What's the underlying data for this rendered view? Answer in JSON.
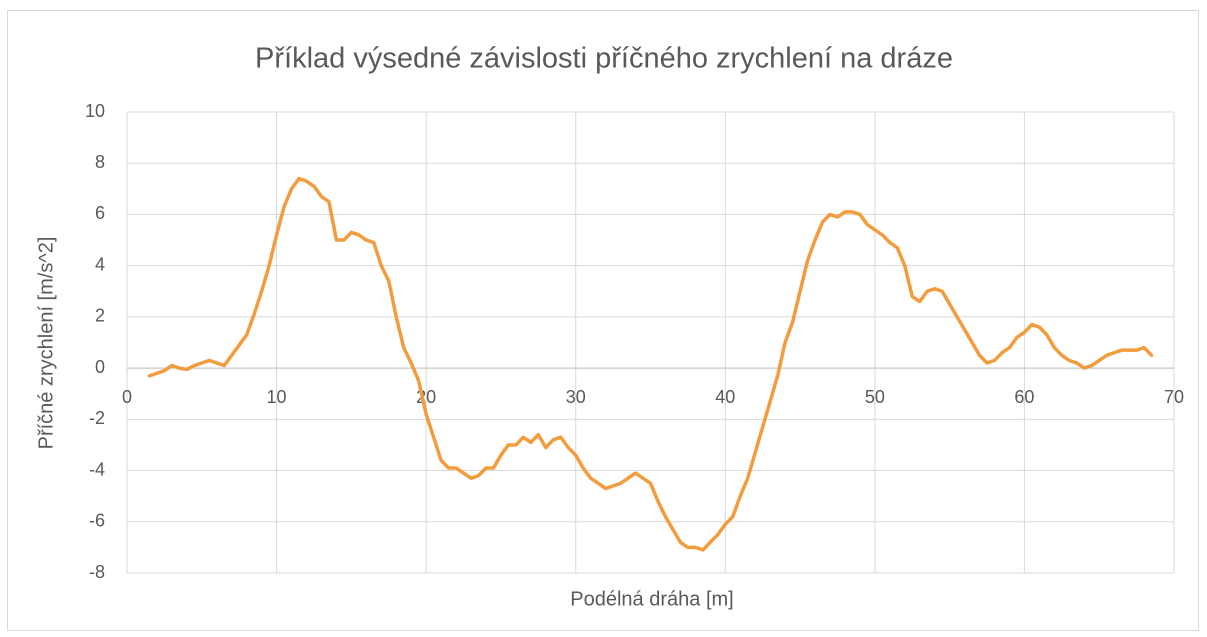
{
  "chart_data": {
    "type": "line",
    "title": "Příklad výsedné závislosti příčného zrychlení na dráze",
    "x_label": "Podélná dráha [m]",
    "y_label": "Příčné zrychlení [m/s^2]",
    "x": [
      1.5,
      2,
      2.5,
      3,
      3.5,
      4,
      4.5,
      5,
      5.5,
      6,
      6.5,
      7,
      7.5,
      8,
      8.5,
      9,
      9.5,
      10,
      10.5,
      11,
      11.5,
      12,
      12.5,
      13,
      13.5,
      14,
      14.5,
      15,
      15.5,
      16,
      16.5,
      17,
      17.5,
      18,
      18.5,
      19,
      19.5,
      20,
      20.5,
      21,
      21.5,
      22,
      22.5,
      23,
      23.5,
      24,
      24.5,
      25,
      25.5,
      26,
      26.5,
      27,
      27.5,
      28,
      28.5,
      29,
      29.5,
      30,
      30.5,
      31,
      31.5,
      32,
      32.5,
      33,
      33.5,
      34,
      34.5,
      35,
      35.5,
      36,
      36.5,
      37,
      37.5,
      38,
      38.5,
      39,
      39.5,
      40,
      40.5,
      41,
      41.5,
      42,
      42.5,
      43,
      43.5,
      44,
      44.5,
      45,
      45.5,
      46,
      46.5,
      47,
      47.5,
      48,
      48.5,
      49,
      49.5,
      50,
      50.5,
      51,
      51.5,
      52,
      52.5,
      53,
      53.5,
      54,
      54.5,
      55,
      55.5,
      56,
      56.5,
      57,
      57.5,
      58,
      58.5,
      59,
      59.5,
      60,
      60.5,
      61,
      61.5,
      62,
      62.5,
      63,
      63.5,
      64,
      64.5,
      65,
      65.5,
      66,
      66.5,
      67,
      67.5,
      68,
      68.5
    ],
    "series": [
      {
        "name": "Příčné zrychlení",
        "color": "#f39c3d",
        "values": [
          -0.3,
          -0.2,
          -0.1,
          0.1,
          0,
          -0.05,
          0.1,
          0.2,
          0.3,
          0.2,
          0.1,
          0.5,
          0.9,
          1.3,
          2.1,
          3.0,
          4.0,
          5.2,
          6.3,
          7.0,
          7.4,
          7.3,
          7.1,
          6.7,
          6.5,
          5.0,
          5.0,
          5.3,
          5.2,
          5.0,
          4.9,
          4.0,
          3.4,
          2.0,
          0.8,
          0.2,
          -0.5,
          -1.8,
          -2.7,
          -3.6,
          -3.9,
          -3.9,
          -4.1,
          -4.3,
          -4.2,
          -3.9,
          -3.9,
          -3.4,
          -3.0,
          -3.0,
          -2.7,
          -2.9,
          -2.6,
          -3.1,
          -2.8,
          -2.7,
          -3.1,
          -3.4,
          -3.9,
          -4.3,
          -4.5,
          -4.7,
          -4.6,
          -4.5,
          -4.3,
          -4.1,
          -4.3,
          -4.5,
          -5.2,
          -5.8,
          -6.3,
          -6.8,
          -7.0,
          -7.0,
          -7.1,
          -6.8,
          -6.5,
          -6.1,
          -5.8,
          -5.0,
          -4.3,
          -3.3,
          -2.3,
          -1.3,
          -0.3,
          1.0,
          1.8,
          3.0,
          4.2,
          5.0,
          5.7,
          6.0,
          5.9,
          6.1,
          6.1,
          6.0,
          5.6,
          5.4,
          5.2,
          4.9,
          4.7,
          4.0,
          2.8,
          2.6,
          3.0,
          3.1,
          3.0,
          2.5,
          2.0,
          1.5,
          1.0,
          0.5,
          0.2,
          0.3,
          0.6,
          0.8,
          1.2,
          1.4,
          1.7,
          1.6,
          1.3,
          0.8,
          0.5,
          0.3,
          0.2,
          0.0,
          0.1,
          0.3,
          0.5,
          0.6,
          0.7,
          0.7,
          0.7,
          0.8,
          0.5
        ]
      }
    ],
    "xlim": [
      0,
      70
    ],
    "xticks": [
      0,
      10,
      20,
      30,
      40,
      50,
      60,
      70
    ],
    "ylim": [
      -8,
      10
    ],
    "yticks": [
      -8,
      -6,
      -4,
      -2,
      0,
      2,
      4,
      6,
      8,
      10
    ],
    "grid": true
  }
}
